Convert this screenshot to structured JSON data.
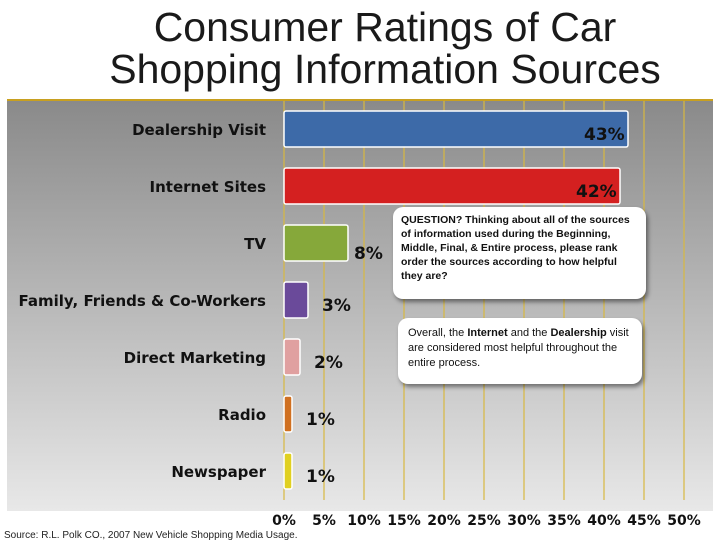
{
  "title_line1": "Consumer Ratings of Car",
  "title_line2": "Shopping Information Sources",
  "source": "Source: R.L. Polk CO., 2007 New Vehicle Shopping Media Usage.",
  "callout_question": "QUESTION?  Thinking about all of the sources of information used during the Beginning, Middle, Final, & Entire process, please rank order the sources according to how helpful they are?",
  "callout_overall": {
    "part1": "Overall, the ",
    "bold1": "Internet",
    "part2": " and the ",
    "bold2": "Dealership",
    "part3": " visit are considered most helpful throughout the entire process."
  },
  "colors": {
    "dealership": "#3d6aa8",
    "internet": "#d42020",
    "tv": "#86a83a",
    "family": "#6a4a9a",
    "direct": "#e0a0a0",
    "radio": "#d07020",
    "newspaper": "#e0d020",
    "grid": "#d8b840"
  },
  "chart_data": {
    "type": "bar",
    "orientation": "horizontal",
    "categories": [
      "Dealership Visit",
      "Internet Sites",
      "TV",
      "Family, Friends & Co-Workers",
      "Direct Marketing",
      "Radio",
      "Newspaper"
    ],
    "values": [
      43,
      42,
      8,
      3,
      2,
      1,
      1
    ],
    "value_labels": [
      "43%",
      "42%",
      "8%",
      "3%",
      "2%",
      "1%",
      "1%"
    ],
    "xticks": [
      "0%",
      "5%",
      "10%",
      "15%",
      "20%",
      "25%",
      "30%",
      "35%",
      "40%",
      "45%",
      "50%"
    ],
    "xlim": [
      0,
      50
    ],
    "grid": true,
    "title": "Consumer Ratings of Car Shopping Information Sources"
  }
}
